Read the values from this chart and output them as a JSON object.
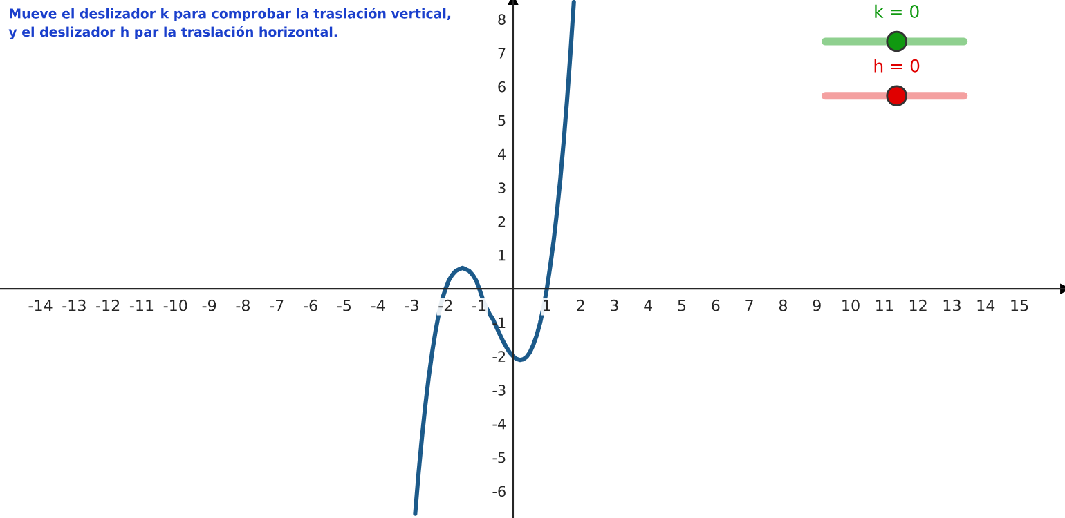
{
  "chart_data": {
    "type": "line",
    "x": [
      -2.9,
      -2.8,
      -2.7,
      -2.6,
      -2.5,
      -2.4,
      -2.3,
      -2.2,
      -2.1,
      -2.0,
      -1.9,
      -1.8,
      -1.7,
      -1.6,
      -1.5,
      -1.4,
      -1.3,
      -1.2,
      -1.1,
      -1.0,
      -0.9,
      -0.8,
      -0.7,
      -0.6,
      -0.4,
      -0.3,
      -0.2,
      -0.1,
      0.0,
      0.1,
      0.2,
      0.3,
      0.4,
      0.5,
      0.6,
      0.7,
      0.8,
      0.9,
      1.0,
      1.1,
      1.2,
      1.3,
      1.4,
      1.5,
      1.6,
      1.7,
      1.8
    ],
    "series": [
      {
        "color": "#1c5a8a",
        "values": [
          -6.67,
          -5.47,
          -4.41,
          -3.46,
          -2.62,
          -1.9,
          -1.27,
          -0.74,
          -0.3,
          0.0,
          0.26,
          0.42,
          0.53,
          0.58,
          0.62,
          0.58,
          0.53,
          0.42,
          0.26,
          0.0,
          -0.3,
          -0.54,
          -0.74,
          -0.9,
          -1.34,
          -1.55,
          -1.73,
          -1.89,
          -2.0,
          -2.08,
          -2.11,
          -2.09,
          -2.02,
          -1.88,
          -1.66,
          -1.38,
          -1.01,
          -0.56,
          0.0,
          0.67,
          1.41,
          2.28,
          3.26,
          4.38,
          5.62,
          7.0,
          8.51
        ]
      }
    ],
    "xlim": [
      -15.2,
      16.35
    ],
    "ylim": [
      -6.8,
      8.57
    ],
    "xticks": [
      -14,
      -13,
      -12,
      -11,
      -10,
      -9,
      -8,
      -7,
      -6,
      -5,
      -4,
      -3,
      -2,
      -1,
      1,
      2,
      3,
      4,
      5,
      6,
      7,
      8,
      9,
      10,
      11,
      12,
      13,
      14,
      15
    ],
    "yticks": [
      -6,
      -5,
      -4,
      -3,
      -2,
      -1,
      1,
      2,
      3,
      4,
      5,
      6,
      7,
      8
    ],
    "grid": false,
    "legend": false,
    "marker": "none",
    "line_style": "solid",
    "annotations": [
      "Mueve el deslizador k para comprobar la traslación vertical,\ny el deslizador h par la traslación horizontal.",
      "k = 0",
      "h = 0"
    ]
  }
}
